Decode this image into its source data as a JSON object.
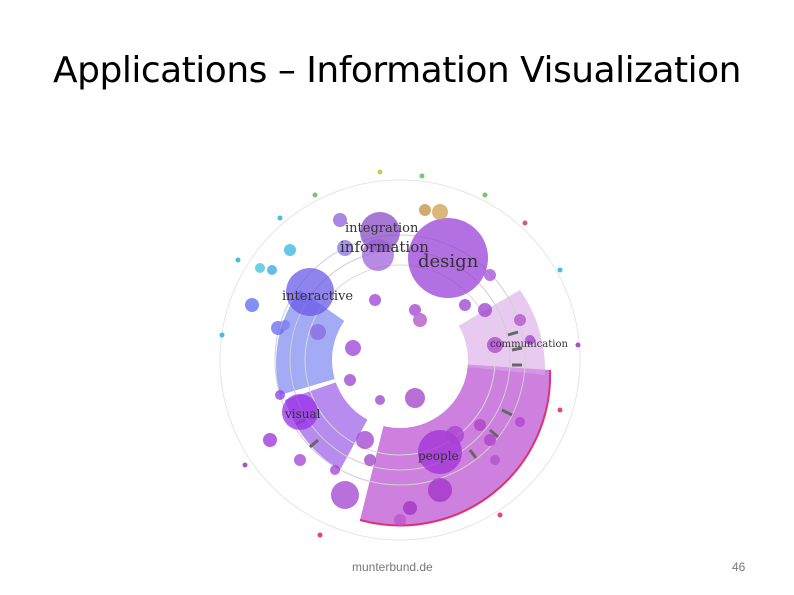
{
  "slide": {
    "title": "Applications – Information Visualization",
    "source": "munterbund.de",
    "page_number": "46"
  },
  "viz": {
    "labels": {
      "integration": "integration",
      "information": "information",
      "design": "design",
      "interactive": "interactive",
      "visual": "visual",
      "people": "people",
      "communication": "communication"
    },
    "colors": {
      "purple": "#8a3ad0",
      "violet": "#6a4ae0",
      "magenta": "#b040d0",
      "pink": "#d060d8",
      "blue": "#5a6af0",
      "cyan": "#30b8e0",
      "green": "#6ac060",
      "red": "#e03070"
    }
  }
}
